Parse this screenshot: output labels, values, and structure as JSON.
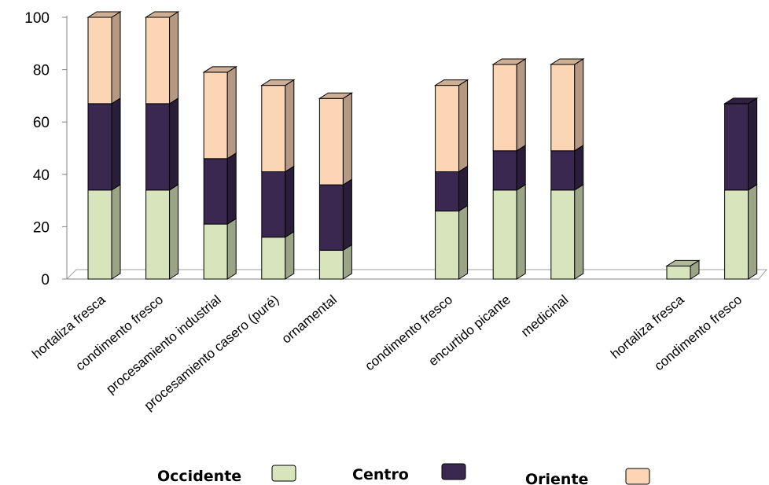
{
  "chart_data": {
    "type": "bar",
    "stacked": true,
    "three_d": true,
    "categories": [
      "hortaliza fresca",
      "condimento fresco",
      "procesamiento industrial",
      "procesamiento casero (puré)",
      "ornamental",
      "",
      "condimento fresco",
      "encurtido picante",
      "medicinal",
      "",
      "hortaliza fresca",
      "condimento fresco"
    ],
    "series": [
      {
        "name": "Occidente",
        "color": "#d8e4bc",
        "values": [
          34,
          34,
          21,
          16,
          11,
          0,
          26,
          34,
          34,
          0,
          5,
          34
        ]
      },
      {
        "name": "Centro",
        "color": "#3b2851",
        "values": [
          33,
          33,
          25,
          25,
          25,
          0,
          15,
          15,
          15,
          0,
          0,
          33
        ]
      },
      {
        "name": "Oriente",
        "color": "#fcd5b5",
        "values": [
          33,
          33,
          33,
          33,
          33,
          0,
          33,
          33,
          33,
          0,
          0,
          0
        ]
      }
    ],
    "ylim": [
      0,
      100
    ],
    "yticks": [
      0,
      20,
      40,
      60,
      80,
      100
    ],
    "grid": false,
    "legend_position": "bottom"
  }
}
